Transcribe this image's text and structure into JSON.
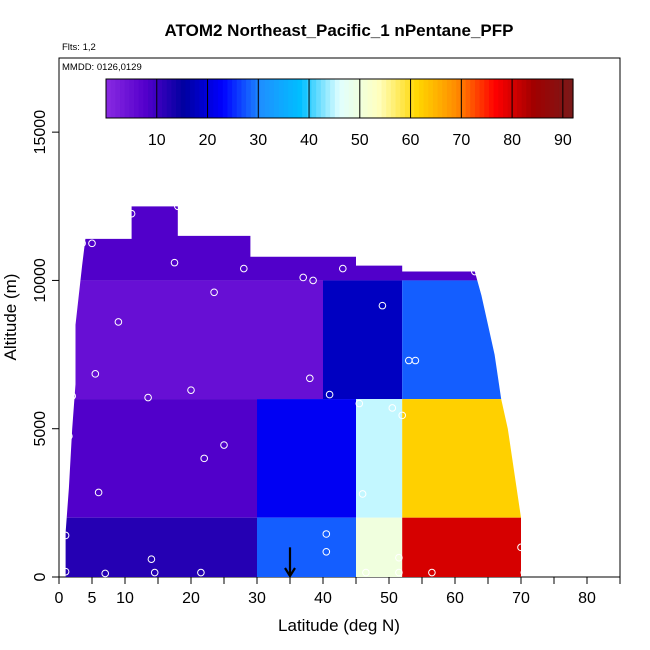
{
  "chart_data": {
    "type": "heatmap",
    "title": "ATOM2 Northeast_Pacific_1 nPentane_PFP",
    "flights_label": "Flts: 1,2",
    "dates_label": "MMDD: 0126,0129",
    "xlabel": "Latitude (deg N)",
    "ylabel": "Altitude (m)",
    "x_ticks": [
      "0",
      "5",
      "10",
      "20",
      "30",
      "40",
      "50",
      "60",
      "70",
      "80"
    ],
    "y_ticks": [
      "0",
      "5000",
      "10000",
      "15000"
    ],
    "xlim": [
      0,
      85
    ],
    "ylim": [
      0,
      17500
    ],
    "colorbar": {
      "range": [
        0,
        92
      ],
      "ticks": [
        "10",
        "20",
        "30",
        "40",
        "50",
        "60",
        "70",
        "80",
        "90"
      ],
      "colors": [
        "#8a2be2",
        "#5500cc",
        "#0000a0",
        "#0000ff",
        "#1e90ff",
        "#00bfff",
        "#e0ffff",
        "#ffffc0",
        "#ffd700",
        "#ff8c00",
        "#ff0000",
        "#a00000",
        "#7a1a1a"
      ]
    },
    "profile_outline": [
      [
        1,
        0
      ],
      [
        1,
        1500
      ],
      [
        1.5,
        3000
      ],
      [
        2,
        5000
      ],
      [
        2.5,
        6500
      ],
      [
        2.5,
        8500
      ],
      [
        3,
        9500
      ],
      [
        3.5,
        10500
      ],
      [
        4,
        11400
      ],
      [
        11,
        11400
      ],
      [
        11,
        12500
      ],
      [
        18,
        12500
      ],
      [
        18,
        11500
      ],
      [
        29,
        11500
      ],
      [
        29,
        10800
      ],
      [
        45,
        10800
      ],
      [
        45,
        10500
      ],
      [
        52,
        10500
      ],
      [
        52,
        10300
      ],
      [
        63,
        10300
      ],
      [
        64,
        9500
      ],
      [
        65,
        8500
      ],
      [
        66,
        7500
      ],
      [
        67,
        6000
      ],
      [
        68,
        5000
      ],
      [
        69,
        3500
      ],
      [
        70,
        2000
      ],
      [
        70.5,
        1000
      ],
      [
        70.5,
        0
      ]
    ],
    "grid_cells": [
      {
        "lat_range": [
          0,
          85
        ],
        "alt_range": [
          10000,
          12500
        ],
        "value": 8
      },
      {
        "lat_range": [
          0,
          40
        ],
        "alt_range": [
          6000,
          10000
        ],
        "value": 5
      },
      {
        "lat_range": [
          40,
          52
        ],
        "alt_range": [
          6000,
          10000
        ],
        "value": 18
      },
      {
        "lat_range": [
          52,
          70
        ],
        "alt_range": [
          6000,
          10000
        ],
        "value": 28
      },
      {
        "lat_range": [
          0,
          30
        ],
        "alt_range": [
          2000,
          6000
        ],
        "value": 8
      },
      {
        "lat_range": [
          30,
          45
        ],
        "alt_range": [
          2000,
          6000
        ],
        "value": 22
      },
      {
        "lat_range": [
          45,
          52
        ],
        "alt_range": [
          2000,
          6000
        ],
        "value": 45
      },
      {
        "lat_range": [
          52,
          70
        ],
        "alt_range": [
          2000,
          6000
        ],
        "value": 62
      },
      {
        "lat_range": [
          0,
          30
        ],
        "alt_range": [
          0,
          2000
        ],
        "value": 12
      },
      {
        "lat_range": [
          30,
          45
        ],
        "alt_range": [
          0,
          2000
        ],
        "value": 28
      },
      {
        "lat_range": [
          45,
          52
        ],
        "alt_range": [
          0,
          2000
        ],
        "value": 50
      },
      {
        "lat_range": [
          52,
          70
        ],
        "alt_range": [
          0,
          2000
        ],
        "value": 80
      }
    ],
    "sample_points": [
      [
        1,
        180
      ],
      [
        1,
        1400
      ],
      [
        1.5,
        4750
      ],
      [
        2,
        6100
      ],
      [
        2.5,
        10300
      ],
      [
        3.5,
        11250
      ],
      [
        5,
        11250
      ],
      [
        5.5,
        6850
      ],
      [
        6,
        2850
      ],
      [
        7,
        120
      ],
      [
        9,
        8600
      ],
      [
        11,
        12250
      ],
      [
        13.5,
        6050
      ],
      [
        14,
        600
      ],
      [
        14.5,
        150
      ],
      [
        17.5,
        10600
      ],
      [
        18,
        12500
      ],
      [
        20,
        6300
      ],
      [
        21.5,
        150
      ],
      [
        22,
        4000
      ],
      [
        23.5,
        9600
      ],
      [
        25,
        4450
      ],
      [
        28,
        10400
      ],
      [
        37,
        10100
      ],
      [
        38,
        6700
      ],
      [
        38.5,
        10000
      ],
      [
        40.5,
        1450
      ],
      [
        40.5,
        850
      ],
      [
        41,
        6150
      ],
      [
        43,
        10400
      ],
      [
        45.5,
        5850
      ],
      [
        46,
        2800
      ],
      [
        46.5,
        150
      ],
      [
        49,
        9150
      ],
      [
        50.5,
        5700
      ],
      [
        51.5,
        650
      ],
      [
        51.5,
        150
      ],
      [
        52,
        5450
      ],
      [
        53,
        7300
      ],
      [
        54,
        7300
      ],
      [
        56.5,
        150
      ],
      [
        63,
        10300
      ],
      [
        70,
        1000
      ],
      [
        70.5,
        150
      ]
    ],
    "marker": {
      "lat": 35,
      "label": ""
    }
  }
}
